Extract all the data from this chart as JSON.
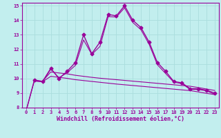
{
  "xlabel": "Windchill (Refroidissement éolien,°C)",
  "bg_color": "#c2eeee",
  "grid_color": "#aadddd",
  "line_color": "#990099",
  "xlim": [
    -0.5,
    23.5
  ],
  "ylim": [
    8,
    15.2
  ],
  "yticks": [
    8,
    9,
    10,
    11,
    12,
    13,
    14,
    15
  ],
  "xticks": [
    0,
    1,
    2,
    3,
    4,
    5,
    6,
    7,
    8,
    9,
    10,
    11,
    12,
    13,
    14,
    15,
    16,
    17,
    18,
    19,
    20,
    21,
    22,
    23
  ],
  "series1_x": [
    0,
    1,
    2,
    3,
    4,
    5,
    6,
    7,
    8,
    9,
    10,
    11,
    12,
    13,
    14,
    15,
    16,
    17,
    18,
    19,
    20,
    21,
    22,
    23
  ],
  "series1_y": [
    7.8,
    9.9,
    9.8,
    10.7,
    10.0,
    10.5,
    11.1,
    13.0,
    11.7,
    12.5,
    14.4,
    14.3,
    15.0,
    14.0,
    13.5,
    12.5,
    11.1,
    10.5,
    9.8,
    9.7,
    9.3,
    9.3,
    9.2,
    9.0
  ],
  "series2_x": [
    0,
    1,
    2,
    3,
    4,
    5,
    6,
    7,
    8,
    9,
    10,
    11,
    12,
    13,
    14,
    15,
    16,
    17,
    18,
    19,
    20,
    21,
    22,
    23
  ],
  "series2_y": [
    7.8,
    9.85,
    9.78,
    10.65,
    10.05,
    10.4,
    10.9,
    12.65,
    11.65,
    12.2,
    14.25,
    14.22,
    14.85,
    13.85,
    13.35,
    12.35,
    10.95,
    10.35,
    9.75,
    9.65,
    9.25,
    9.25,
    9.15,
    8.92
  ],
  "series3_x": [
    1,
    2,
    3,
    4,
    5,
    6,
    7,
    8,
    9,
    10,
    11,
    12,
    13,
    14,
    15,
    16,
    17,
    18,
    19,
    20,
    21,
    22,
    23
  ],
  "series3_y": [
    9.85,
    9.82,
    10.45,
    10.38,
    10.32,
    10.22,
    10.15,
    10.08,
    10.02,
    9.97,
    9.92,
    9.87,
    9.82,
    9.77,
    9.72,
    9.67,
    9.62,
    9.57,
    9.52,
    9.47,
    9.38,
    9.28,
    9.18
  ],
  "series4_x": [
    1,
    2,
    3,
    4,
    5,
    6,
    7,
    8,
    9,
    10,
    11,
    12,
    13,
    14,
    15,
    16,
    17,
    18,
    19,
    20,
    21,
    22,
    23
  ],
  "series4_y": [
    9.82,
    9.78,
    10.15,
    10.08,
    10.01,
    9.92,
    9.86,
    9.8,
    9.74,
    9.68,
    9.62,
    9.57,
    9.52,
    9.47,
    9.42,
    9.37,
    9.32,
    9.27,
    9.22,
    9.17,
    9.08,
    8.98,
    8.9
  ]
}
